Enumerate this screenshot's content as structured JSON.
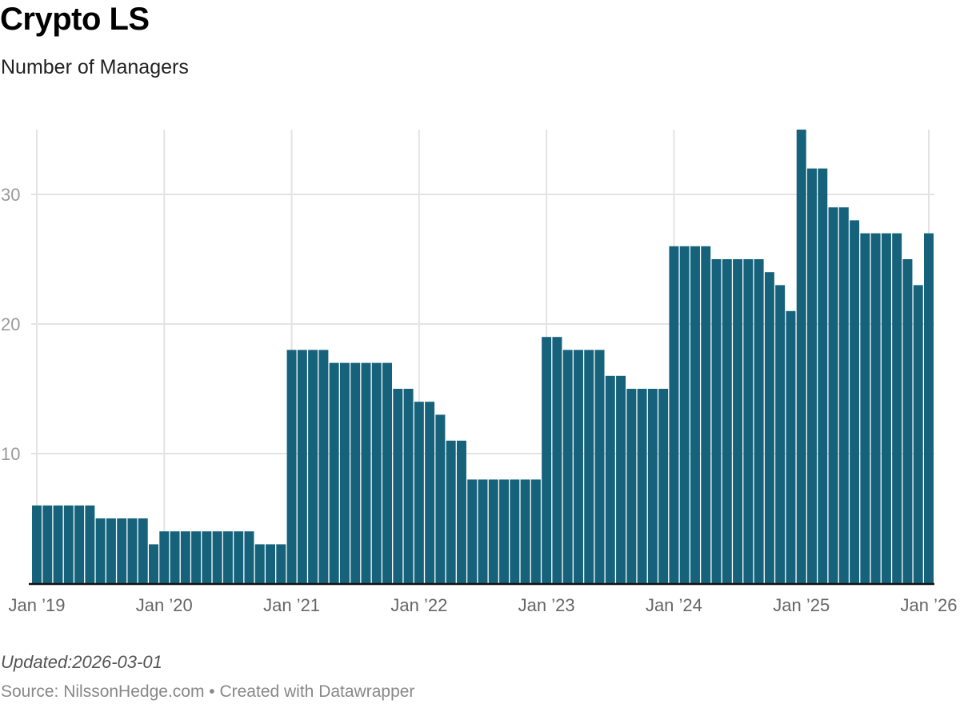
{
  "header": {
    "title": "Crypto LS",
    "subtitle": "Number of Managers"
  },
  "footer": {
    "updated": "Updated:2026-03-01",
    "source": "Source: NilssonHedge.com • Created with Datawrapper"
  },
  "colors": {
    "bar": "#16627b",
    "grid": "#e3e3e3",
    "baseline": "#111111"
  },
  "chart_data": {
    "type": "bar",
    "title": "Crypto LS",
    "subtitle": "Number of Managers",
    "ylim": [
      0,
      35
    ],
    "grid": true,
    "y_ticks": [
      10,
      20,
      30
    ],
    "x_ticks": [
      "Jan ’19",
      "Jan ’20",
      "Jan ’21",
      "Jan ’22",
      "Jan ’23",
      "Jan ’24",
      "Jan ’25",
      "Jan ’26"
    ],
    "x_start": "2019-01",
    "x_end": "2026-01",
    "frequency": "monthly",
    "values": [
      6,
      6,
      6,
      6,
      6,
      6,
      5,
      5,
      5,
      5,
      5,
      3,
      4,
      4,
      4,
      4,
      4,
      4,
      4,
      4,
      4,
      3,
      3,
      3,
      18,
      18,
      18,
      18,
      17,
      17,
      17,
      17,
      17,
      17,
      15,
      15,
      14,
      14,
      13,
      11,
      11,
      8,
      8,
      8,
      8,
      8,
      8,
      8,
      19,
      19,
      18,
      18,
      18,
      18,
      16,
      16,
      15,
      15,
      15,
      15,
      26,
      26,
      26,
      26,
      25,
      25,
      25,
      25,
      25,
      24,
      23,
      21,
      35,
      32,
      32,
      29,
      29,
      28,
      27,
      27,
      27,
      27,
      25,
      23,
      27
    ]
  }
}
